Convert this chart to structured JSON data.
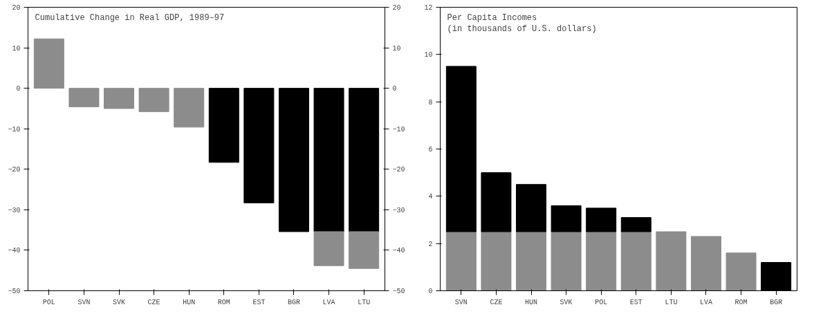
{
  "chart_data": [
    {
      "type": "bar",
      "title": "Cumulative Change in Real GDP, 1989–97",
      "stacked": true,
      "categories": [
        "POL",
        "SVN",
        "SVK",
        "CZE",
        "HUN",
        "ROM",
        "EST",
        "BGR",
        "LVA",
        "LTU"
      ],
      "series": [
        {
          "colors": [
            "#8c8c8c",
            "#8c8c8c",
            "#8c8c8c",
            "#8c8c8c",
            "#8c8c8c",
            "#000000",
            "#000000",
            "#000000",
            "#000000",
            "#000000"
          ],
          "values": [
            12.2,
            -4.6,
            -5.0,
            -5.8,
            -9.6,
            -18.3,
            -28.3,
            -35.4,
            -35.4,
            -35.4
          ]
        },
        {
          "color": "#8c8c8c",
          "values": [
            null,
            null,
            null,
            null,
            null,
            null,
            null,
            null,
            -8.4,
            -9.1
          ]
        }
      ],
      "ylim": [
        -50,
        20
      ],
      "yticks": [
        -50,
        -40,
        -30,
        -20,
        -10,
        0,
        10,
        20
      ],
      "y2lim": [
        -50,
        20
      ],
      "y2ticks": [
        -50,
        -40,
        -30,
        -20,
        -10,
        0,
        10,
        20
      ],
      "grid": false
    },
    {
      "type": "bar",
      "title": "Per Capita Incomes",
      "subtitle": "(in thousands of U.S. dollars)",
      "stacked": true,
      "categories": [
        "SVN",
        "CZE",
        "HUN",
        "SVK",
        "POL",
        "EST",
        "LTU",
        "LVA",
        "ROM",
        "BGR"
      ],
      "series": [
        {
          "color": "#8c8c8c",
          "values": [
            2.5,
            2.5,
            2.5,
            2.5,
            2.5,
            2.5,
            2.5,
            2.3,
            1.6,
            null
          ]
        },
        {
          "color": "#000000",
          "values": [
            7.0,
            2.5,
            2.0,
            1.1,
            1.0,
            0.6,
            null,
            null,
            null,
            1.2
          ]
        }
      ],
      "ylim": [
        0,
        12
      ],
      "yticks": [
        0,
        2,
        4,
        6,
        8,
        10,
        12
      ],
      "grid": false
    }
  ]
}
